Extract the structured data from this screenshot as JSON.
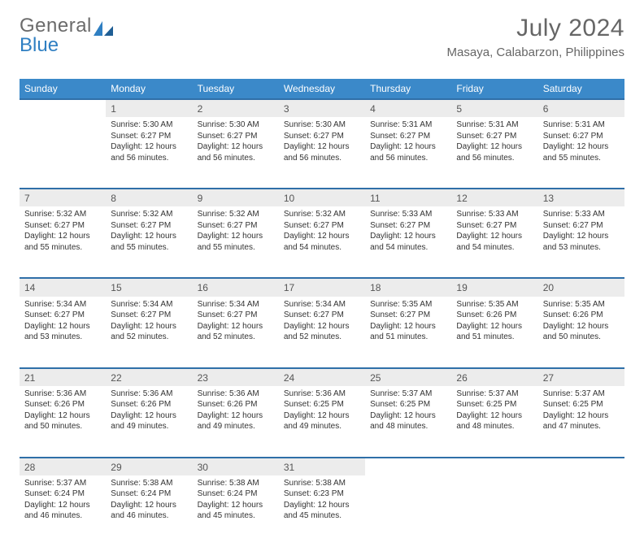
{
  "brand": {
    "word1": "General",
    "word2": "Blue"
  },
  "title": "July 2024",
  "location": "Masaya, Calabarzon, Philippines",
  "colors": {
    "header_bg": "#3b89c9",
    "header_text": "#ffffff",
    "row_sep": "#2f6fa8",
    "daynum_bg": "#ececec",
    "text": "#333333",
    "muted": "#666666",
    "logo_gray": "#6b6b6b",
    "logo_blue": "#2f7fc2",
    "background": "#ffffff"
  },
  "fonts": {
    "base_family": "Arial",
    "title_size_pt": 22,
    "location_size_pt": 11,
    "header_size_pt": 9,
    "body_size_pt": 7.5
  },
  "weekdays": [
    "Sunday",
    "Monday",
    "Tuesday",
    "Wednesday",
    "Thursday",
    "Friday",
    "Saturday"
  ],
  "weeks": [
    {
      "days": [
        null,
        {
          "n": "1",
          "sr": "Sunrise: 5:30 AM",
          "ss": "Sunset: 6:27 PM",
          "d1": "Daylight: 12 hours",
          "d2": "and 56 minutes."
        },
        {
          "n": "2",
          "sr": "Sunrise: 5:30 AM",
          "ss": "Sunset: 6:27 PM",
          "d1": "Daylight: 12 hours",
          "d2": "and 56 minutes."
        },
        {
          "n": "3",
          "sr": "Sunrise: 5:30 AM",
          "ss": "Sunset: 6:27 PM",
          "d1": "Daylight: 12 hours",
          "d2": "and 56 minutes."
        },
        {
          "n": "4",
          "sr": "Sunrise: 5:31 AM",
          "ss": "Sunset: 6:27 PM",
          "d1": "Daylight: 12 hours",
          "d2": "and 56 minutes."
        },
        {
          "n": "5",
          "sr": "Sunrise: 5:31 AM",
          "ss": "Sunset: 6:27 PM",
          "d1": "Daylight: 12 hours",
          "d2": "and 56 minutes."
        },
        {
          "n": "6",
          "sr": "Sunrise: 5:31 AM",
          "ss": "Sunset: 6:27 PM",
          "d1": "Daylight: 12 hours",
          "d2": "and 55 minutes."
        }
      ]
    },
    {
      "days": [
        {
          "n": "7",
          "sr": "Sunrise: 5:32 AM",
          "ss": "Sunset: 6:27 PM",
          "d1": "Daylight: 12 hours",
          "d2": "and 55 minutes."
        },
        {
          "n": "8",
          "sr": "Sunrise: 5:32 AM",
          "ss": "Sunset: 6:27 PM",
          "d1": "Daylight: 12 hours",
          "d2": "and 55 minutes."
        },
        {
          "n": "9",
          "sr": "Sunrise: 5:32 AM",
          "ss": "Sunset: 6:27 PM",
          "d1": "Daylight: 12 hours",
          "d2": "and 55 minutes."
        },
        {
          "n": "10",
          "sr": "Sunrise: 5:32 AM",
          "ss": "Sunset: 6:27 PM",
          "d1": "Daylight: 12 hours",
          "d2": "and 54 minutes."
        },
        {
          "n": "11",
          "sr": "Sunrise: 5:33 AM",
          "ss": "Sunset: 6:27 PM",
          "d1": "Daylight: 12 hours",
          "d2": "and 54 minutes."
        },
        {
          "n": "12",
          "sr": "Sunrise: 5:33 AM",
          "ss": "Sunset: 6:27 PM",
          "d1": "Daylight: 12 hours",
          "d2": "and 54 minutes."
        },
        {
          "n": "13",
          "sr": "Sunrise: 5:33 AM",
          "ss": "Sunset: 6:27 PM",
          "d1": "Daylight: 12 hours",
          "d2": "and 53 minutes."
        }
      ]
    },
    {
      "days": [
        {
          "n": "14",
          "sr": "Sunrise: 5:34 AM",
          "ss": "Sunset: 6:27 PM",
          "d1": "Daylight: 12 hours",
          "d2": "and 53 minutes."
        },
        {
          "n": "15",
          "sr": "Sunrise: 5:34 AM",
          "ss": "Sunset: 6:27 PM",
          "d1": "Daylight: 12 hours",
          "d2": "and 52 minutes."
        },
        {
          "n": "16",
          "sr": "Sunrise: 5:34 AM",
          "ss": "Sunset: 6:27 PM",
          "d1": "Daylight: 12 hours",
          "d2": "and 52 minutes."
        },
        {
          "n": "17",
          "sr": "Sunrise: 5:34 AM",
          "ss": "Sunset: 6:27 PM",
          "d1": "Daylight: 12 hours",
          "d2": "and 52 minutes."
        },
        {
          "n": "18",
          "sr": "Sunrise: 5:35 AM",
          "ss": "Sunset: 6:27 PM",
          "d1": "Daylight: 12 hours",
          "d2": "and 51 minutes."
        },
        {
          "n": "19",
          "sr": "Sunrise: 5:35 AM",
          "ss": "Sunset: 6:26 PM",
          "d1": "Daylight: 12 hours",
          "d2": "and 51 minutes."
        },
        {
          "n": "20",
          "sr": "Sunrise: 5:35 AM",
          "ss": "Sunset: 6:26 PM",
          "d1": "Daylight: 12 hours",
          "d2": "and 50 minutes."
        }
      ]
    },
    {
      "days": [
        {
          "n": "21",
          "sr": "Sunrise: 5:36 AM",
          "ss": "Sunset: 6:26 PM",
          "d1": "Daylight: 12 hours",
          "d2": "and 50 minutes."
        },
        {
          "n": "22",
          "sr": "Sunrise: 5:36 AM",
          "ss": "Sunset: 6:26 PM",
          "d1": "Daylight: 12 hours",
          "d2": "and 49 minutes."
        },
        {
          "n": "23",
          "sr": "Sunrise: 5:36 AM",
          "ss": "Sunset: 6:26 PM",
          "d1": "Daylight: 12 hours",
          "d2": "and 49 minutes."
        },
        {
          "n": "24",
          "sr": "Sunrise: 5:36 AM",
          "ss": "Sunset: 6:25 PM",
          "d1": "Daylight: 12 hours",
          "d2": "and 49 minutes."
        },
        {
          "n": "25",
          "sr": "Sunrise: 5:37 AM",
          "ss": "Sunset: 6:25 PM",
          "d1": "Daylight: 12 hours",
          "d2": "and 48 minutes."
        },
        {
          "n": "26",
          "sr": "Sunrise: 5:37 AM",
          "ss": "Sunset: 6:25 PM",
          "d1": "Daylight: 12 hours",
          "d2": "and 48 minutes."
        },
        {
          "n": "27",
          "sr": "Sunrise: 5:37 AM",
          "ss": "Sunset: 6:25 PM",
          "d1": "Daylight: 12 hours",
          "d2": "and 47 minutes."
        }
      ]
    },
    {
      "days": [
        {
          "n": "28",
          "sr": "Sunrise: 5:37 AM",
          "ss": "Sunset: 6:24 PM",
          "d1": "Daylight: 12 hours",
          "d2": "and 46 minutes."
        },
        {
          "n": "29",
          "sr": "Sunrise: 5:38 AM",
          "ss": "Sunset: 6:24 PM",
          "d1": "Daylight: 12 hours",
          "d2": "and 46 minutes."
        },
        {
          "n": "30",
          "sr": "Sunrise: 5:38 AM",
          "ss": "Sunset: 6:24 PM",
          "d1": "Daylight: 12 hours",
          "d2": "and 45 minutes."
        },
        {
          "n": "31",
          "sr": "Sunrise: 5:38 AM",
          "ss": "Sunset: 6:23 PM",
          "d1": "Daylight: 12 hours",
          "d2": "and 45 minutes."
        },
        null,
        null,
        null
      ]
    }
  ]
}
